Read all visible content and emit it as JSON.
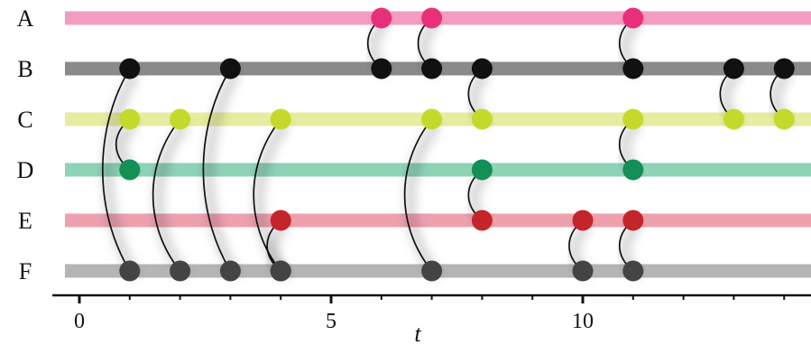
{
  "rows": [
    {
      "label": "A",
      "node_color": "#e8307a",
      "line_color": "#f29cc2"
    },
    {
      "label": "B",
      "node_color": "#111111",
      "line_color": "#8a8a8a"
    },
    {
      "label": "C",
      "node_color": "#c5d92c",
      "line_color": "#e6eda0"
    },
    {
      "label": "D",
      "node_color": "#148f55",
      "line_color": "#8fd3b7"
    },
    {
      "label": "E",
      "node_color": "#c4252b",
      "line_color": "#eda0ae"
    },
    {
      "label": "F",
      "node_color": "#444444",
      "line_color": "#b5b5b5"
    }
  ],
  "axis": {
    "label": "t",
    "min": 0,
    "max": 14.5,
    "major_ticks": [
      0,
      5,
      10
    ],
    "minor_ticks": [
      1,
      2,
      3,
      4,
      6,
      7,
      8,
      9,
      11,
      12,
      13,
      14
    ]
  },
  "contacts": [
    {
      "t": 1,
      "from": "B",
      "to": "F"
    },
    {
      "t": 1,
      "from": "C",
      "to": "D"
    },
    {
      "t": 2,
      "from": "C",
      "to": "F"
    },
    {
      "t": 3,
      "from": "B",
      "to": "F"
    },
    {
      "t": 4,
      "from": "C",
      "to": "F"
    },
    {
      "t": 4,
      "from": "E",
      "to": "F"
    },
    {
      "t": 6,
      "from": "A",
      "to": "B"
    },
    {
      "t": 7,
      "from": "A",
      "to": "B"
    },
    {
      "t": 7,
      "from": "C",
      "to": "F"
    },
    {
      "t": 8,
      "from": "B",
      "to": "C"
    },
    {
      "t": 8,
      "from": "D",
      "to": "E"
    },
    {
      "t": 10,
      "from": "E",
      "to": "F"
    },
    {
      "t": 11,
      "from": "A",
      "to": "B"
    },
    {
      "t": 11,
      "from": "C",
      "to": "D"
    },
    {
      "t": 11,
      "from": "E",
      "to": "F"
    },
    {
      "t": 13,
      "from": "B",
      "to": "C"
    },
    {
      "t": 14,
      "from": "B",
      "to": "C"
    }
  ]
}
